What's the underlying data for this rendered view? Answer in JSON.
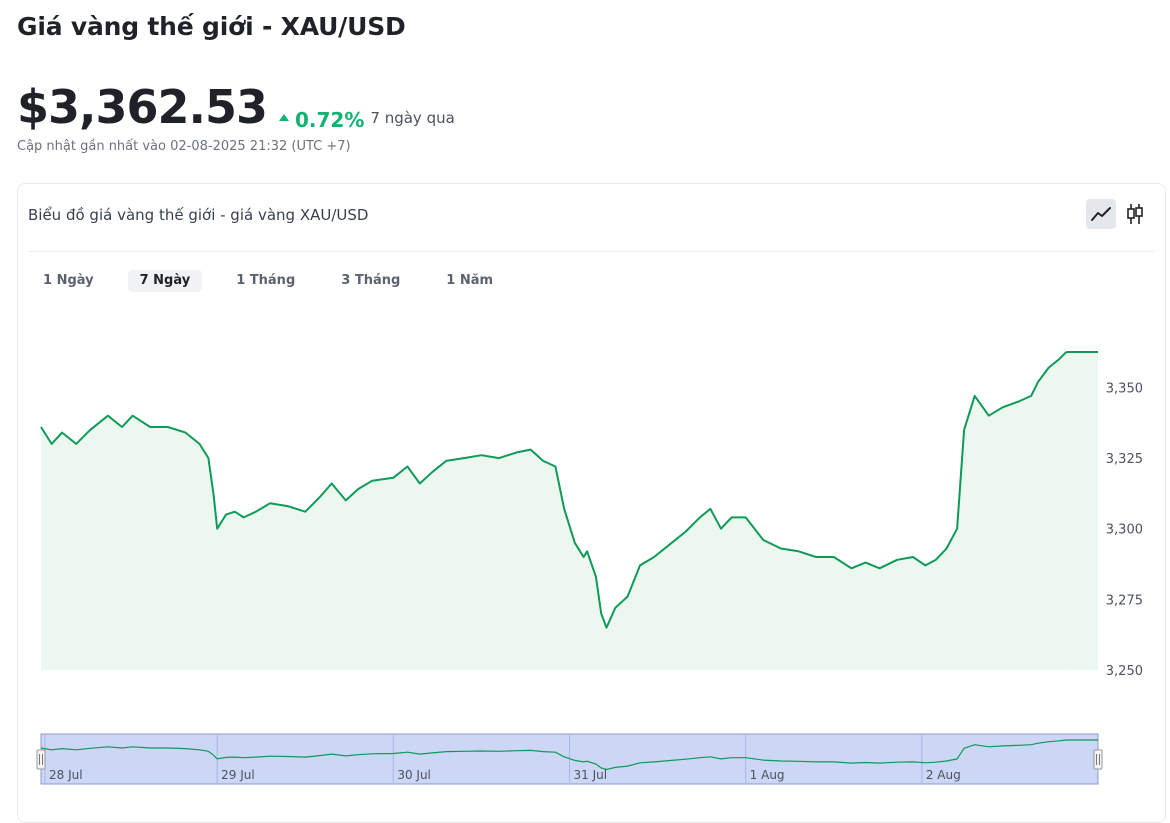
{
  "page": {
    "title": "Giá vàng thế giới - XAU/USD",
    "price": "$3,362.53",
    "change": "0.72%",
    "period": "7 ngày qua",
    "updated": "Cập nhật gần nhất vào 02-08-2025 21:32 (UTC +7)"
  },
  "card": {
    "title": "Biểu đồ giá vàng thế giới - giá vàng XAU/USD",
    "tools": [
      {
        "name": "line-chart-icon",
        "active": true
      },
      {
        "name": "candlestick-icon",
        "active": false
      }
    ],
    "tabs": [
      {
        "label": "1 Ngày",
        "active": false
      },
      {
        "label": "7 Ngày",
        "active": true
      },
      {
        "label": "1 Tháng",
        "active": false
      },
      {
        "label": "3 Tháng",
        "active": false
      },
      {
        "label": "1 Năm",
        "active": false
      }
    ]
  },
  "colors": {
    "accent_green": "#11b373",
    "line": "#0e9a57",
    "area_fill": "#ecf7ef",
    "navigator_fill": "#ccd6f5",
    "navigator_border": "#8c9bd9"
  },
  "chart_data": {
    "type": "line",
    "ylim": [
      3250,
      3362.53
    ],
    "yticks": [
      3250,
      3275,
      3300,
      3325,
      3350
    ],
    "y_tick_labels": [
      "3,250",
      "3,275",
      "3,300",
      "3,325",
      "3,350"
    ],
    "xlim": [
      0,
      6
    ],
    "navigator_ticks": [
      {
        "x": 0,
        "label": "28 Jul"
      },
      {
        "x": 1,
        "label": "29 Jul"
      },
      {
        "x": 2,
        "label": "30 Jul"
      },
      {
        "x": 3,
        "label": "31 Jul"
      },
      {
        "x": 4,
        "label": "1 Aug"
      },
      {
        "x": 5,
        "label": "2 Aug"
      }
    ],
    "x_unit": "days since 28 Jul",
    "series": [
      {
        "name": "XAU/USD",
        "points": [
          [
            0.0,
            3336
          ],
          [
            0.06,
            3330
          ],
          [
            0.12,
            3334
          ],
          [
            0.2,
            3330
          ],
          [
            0.28,
            3335
          ],
          [
            0.38,
            3340
          ],
          [
            0.46,
            3336
          ],
          [
            0.52,
            3340
          ],
          [
            0.62,
            3336
          ],
          [
            0.72,
            3336
          ],
          [
            0.82,
            3334
          ],
          [
            0.9,
            3330
          ],
          [
            0.95,
            3325
          ],
          [
            0.98,
            3312
          ],
          [
            1.0,
            3300
          ],
          [
            1.05,
            3305
          ],
          [
            1.1,
            3306
          ],
          [
            1.15,
            3304
          ],
          [
            1.22,
            3306
          ],
          [
            1.3,
            3309
          ],
          [
            1.4,
            3308
          ],
          [
            1.5,
            3306
          ],
          [
            1.58,
            3311
          ],
          [
            1.65,
            3316
          ],
          [
            1.73,
            3310
          ],
          [
            1.8,
            3314
          ],
          [
            1.88,
            3317
          ],
          [
            2.0,
            3318
          ],
          [
            2.08,
            3322
          ],
          [
            2.15,
            3316
          ],
          [
            2.22,
            3320
          ],
          [
            2.3,
            3324
          ],
          [
            2.4,
            3325
          ],
          [
            2.5,
            3326
          ],
          [
            2.6,
            3325
          ],
          [
            2.7,
            3327
          ],
          [
            2.78,
            3328
          ],
          [
            2.85,
            3324
          ],
          [
            2.92,
            3322
          ],
          [
            2.97,
            3307
          ],
          [
            3.03,
            3295
          ],
          [
            3.08,
            3290
          ],
          [
            3.1,
            3292
          ],
          [
            3.15,
            3283
          ],
          [
            3.18,
            3270
          ],
          [
            3.21,
            3265
          ],
          [
            3.26,
            3272
          ],
          [
            3.33,
            3276
          ],
          [
            3.4,
            3287
          ],
          [
            3.48,
            3290
          ],
          [
            3.58,
            3295
          ],
          [
            3.66,
            3299
          ],
          [
            3.74,
            3304
          ],
          [
            3.8,
            3307
          ],
          [
            3.86,
            3300
          ],
          [
            3.92,
            3304
          ],
          [
            4.0,
            3304
          ],
          [
            4.1,
            3296
          ],
          [
            4.2,
            3293
          ],
          [
            4.3,
            3292
          ],
          [
            4.4,
            3290
          ],
          [
            4.5,
            3290
          ],
          [
            4.6,
            3286
          ],
          [
            4.68,
            3288
          ],
          [
            4.76,
            3286
          ],
          [
            4.86,
            3289
          ],
          [
            4.95,
            3290
          ],
          [
            5.02,
            3287
          ],
          [
            5.08,
            3289
          ],
          [
            5.14,
            3293
          ],
          [
            5.2,
            3300
          ],
          [
            5.24,
            3335
          ],
          [
            5.3,
            3347
          ],
          [
            5.38,
            3340
          ],
          [
            5.46,
            3343
          ],
          [
            5.55,
            3345
          ],
          [
            5.62,
            3347
          ],
          [
            5.66,
            3352
          ],
          [
            5.72,
            3357
          ],
          [
            5.78,
            3360
          ],
          [
            5.82,
            3362.53
          ]
        ]
      }
    ],
    "grid": false,
    "legend": "none"
  }
}
